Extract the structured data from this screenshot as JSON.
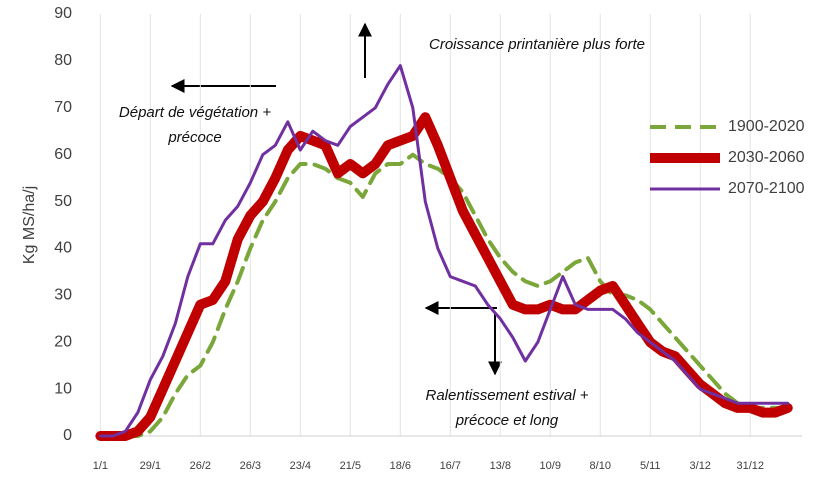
{
  "chart_data": {
    "type": "line",
    "y_label": "Kg MS/ha/j",
    "annotations": [
      "Croissance printanière plus forte",
      "Départ de végétation +",
      "précoce",
      "Ralentissement estival +",
      "précoce et long"
    ],
    "x": [
      1,
      8,
      15,
      22,
      29,
      36,
      43,
      50,
      57,
      64,
      71,
      78,
      85,
      92,
      99,
      106,
      113,
      120,
      127,
      134,
      141,
      148,
      155,
      162,
      169,
      176,
      183,
      190,
      197,
      204,
      211,
      218,
      225,
      232,
      239,
      246,
      253,
      260,
      267,
      274,
      281,
      288,
      295,
      302,
      309,
      316,
      323,
      330,
      337,
      344,
      351,
      358,
      365,
      372,
      379,
      386
    ],
    "series": [
      {
        "name": "1900-2020",
        "color": "#7aa63a",
        "dash": true,
        "width": 4,
        "values": [
          0,
          0,
          0,
          0,
          1,
          4,
          9,
          13,
          15,
          20,
          27,
          33,
          40,
          46,
          50,
          55,
          58,
          58,
          57,
          55,
          54,
          51,
          56,
          58,
          58,
          60,
          58,
          57,
          55,
          52,
          47,
          42,
          38,
          35,
          33,
          32,
          33,
          35,
          37,
          38,
          33,
          30,
          30,
          29,
          27,
          24,
          21,
          18,
          15,
          12,
          9,
          7,
          6,
          6,
          6,
          6
        ]
      },
      {
        "name": "2030-2060",
        "color": "#c00000",
        "dash": false,
        "width": 10,
        "values": [
          0,
          0,
          0,
          1,
          4,
          10,
          16,
          22,
          28,
          29,
          33,
          42,
          47,
          50,
          55,
          61,
          64,
          63,
          62,
          56,
          58,
          56,
          58,
          62,
          63,
          64,
          68,
          62,
          55,
          48,
          43,
          38,
          33,
          28,
          27,
          27,
          28,
          27,
          27,
          29,
          31,
          32,
          28,
          24,
          20,
          18,
          17,
          14,
          11,
          9,
          7,
          6,
          6,
          5,
          5,
          6
        ]
      },
      {
        "name": "2070-2100",
        "color": "#7030a0",
        "dash": false,
        "width": 3,
        "values": [
          0,
          0,
          1,
          5,
          12,
          17,
          24,
          34,
          41,
          41,
          46,
          49,
          54,
          60,
          62,
          67,
          61,
          65,
          63,
          62,
          66,
          68,
          70,
          75,
          79,
          70,
          50,
          40,
          34,
          33,
          32,
          28,
          25,
          21,
          16,
          20,
          27,
          34,
          28,
          27,
          27,
          27,
          25,
          22,
          20,
          18,
          16,
          13,
          10,
          9,
          8,
          7,
          7,
          7,
          7,
          7
        ]
      }
    ],
    "xlim": [
      -2,
      394
    ],
    "xticks": [
      {
        "value": 1,
        "label": "1/1"
      },
      {
        "value": 29,
        "label": "29/1"
      },
      {
        "value": 57,
        "label": "26/2"
      },
      {
        "value": 85,
        "label": "26/3"
      },
      {
        "value": 113,
        "label": "23/4"
      },
      {
        "value": 141,
        "label": "21/5"
      },
      {
        "value": 169,
        "label": "18/6"
      },
      {
        "value": 197,
        "label": "16/7"
      },
      {
        "value": 225,
        "label": "13/8"
      },
      {
        "value": 253,
        "label": "10/9"
      },
      {
        "value": 281,
        "label": "8/10"
      },
      {
        "value": 309,
        "label": "5/11"
      },
      {
        "value": 337,
        "label": "3/12"
      },
      {
        "value": 365,
        "label": "31/12"
      }
    ],
    "ylim": [
      0,
      90
    ],
    "yticks": [
      0,
      10,
      20,
      30,
      40,
      50,
      60,
      70,
      80,
      90
    ],
    "grid": "x"
  }
}
